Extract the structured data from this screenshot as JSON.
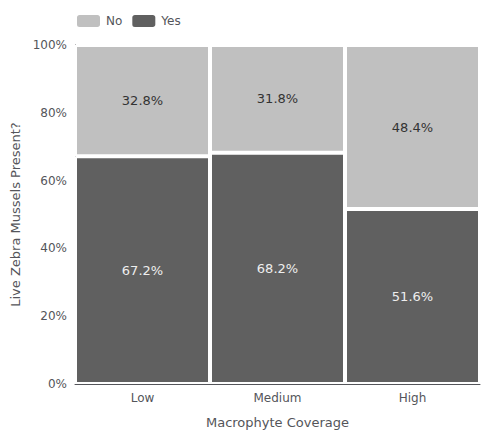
{
  "chart_data": {
    "type": "bar",
    "stacked": true,
    "categories": [
      "Low",
      "Medium",
      "High"
    ],
    "series": [
      {
        "name": "Yes",
        "color": "#606060",
        "values": [
          67.2,
          68.2,
          51.6
        ],
        "value_labels": [
          "67.2%",
          "68.2%",
          "51.6%"
        ]
      },
      {
        "name": "No",
        "color": "#c0c0c0",
        "values": [
          32.8,
          31.8,
          48.4
        ],
        "value_labels": [
          "32.8%",
          "31.8%",
          "48.4%"
        ]
      }
    ],
    "xlabel": "Macrophyte Coverage",
    "ylabel": "Live Zebra Mussels Present?",
    "ylim": [
      0,
      100
    ],
    "yticks": [
      {
        "value": 0,
        "label": "0%"
      },
      {
        "value": 20,
        "label": "20%"
      },
      {
        "value": 40,
        "label": "40%"
      },
      {
        "value": 60,
        "label": "60%"
      },
      {
        "value": 80,
        "label": "80%"
      },
      {
        "value": 100,
        "label": "100%"
      }
    ],
    "grid": false,
    "data_labels": true,
    "legend": "upper left"
  }
}
